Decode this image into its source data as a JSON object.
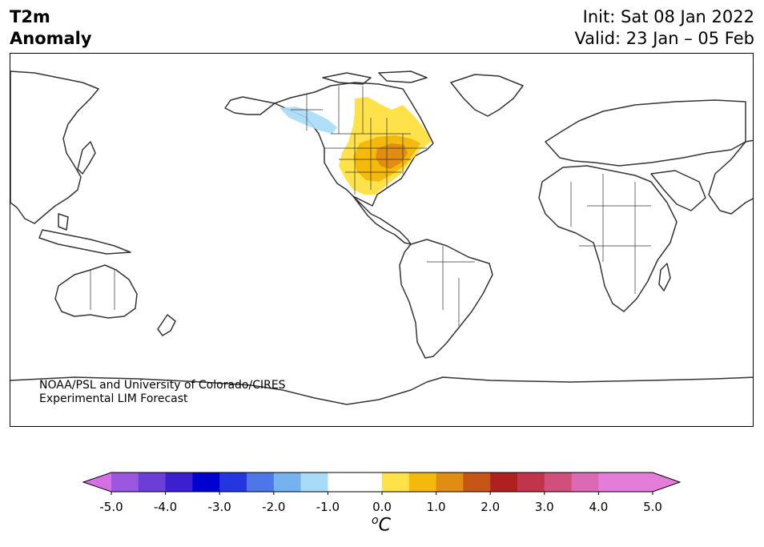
{
  "header": {
    "variable": "T2m",
    "field": "Anomaly",
    "init": "Init: Sat 08 Jan 2022",
    "valid": "Valid: 23 Jan – 05 Feb"
  },
  "credit": {
    "line1": "NOAA/PSL and University of Colorado/CIRES",
    "line2": "Experimental LIM Forecast"
  },
  "colorbar": {
    "unit_base": "C",
    "unit_super": "o",
    "ticks": [
      "-5.0",
      "-4.0",
      "-3.0",
      "-2.0",
      "-1.0",
      "0.0",
      "1.0",
      "2.0",
      "3.0",
      "4.0",
      "5.0"
    ],
    "colors": {
      "neg_extend": "#d56fe5",
      "neg": [
        "#9a57e0",
        "#6b3ed8",
        "#3b1fd0",
        "#0000d0",
        "#2436e0",
        "#4d77e8",
        "#76b1f0",
        "#a8dbf8"
      ],
      "neutral": "#ffffff",
      "pos": [
        "#ffe24a",
        "#f3b90d",
        "#e08d12",
        "#c65516",
        "#b02020",
        "#c2344b",
        "#d04f7c",
        "#db69b4"
      ],
      "pos_extend": "#e67cd9"
    }
  },
  "anomalies": [
    {
      "region": "Western Canada",
      "value_c": -1.0,
      "color": "#a8dbf8"
    },
    {
      "region": "Central & Eastern United States",
      "value_c": 1.0,
      "color": "#ffe24a"
    },
    {
      "region": "Central & Eastern United States core",
      "value_c": 1.5,
      "color": "#f3b90d"
    },
    {
      "region": "Ohio / Tennessee Valley",
      "value_c": 2.0,
      "color": "#e08d12"
    }
  ]
}
